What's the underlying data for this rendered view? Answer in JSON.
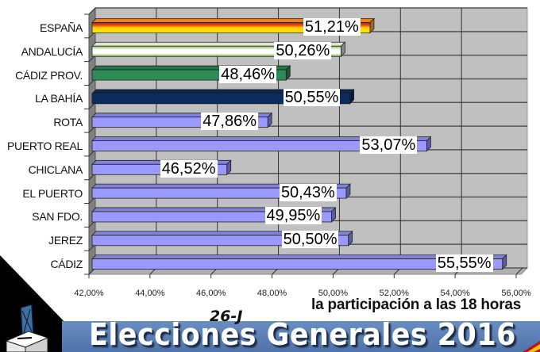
{
  "chart_data": {
    "type": "bar",
    "orientation": "horizontal",
    "style": "3d",
    "title": "",
    "subtitle": "la participación a las 18 horas",
    "xlabel": "",
    "ylabel": "",
    "xlim": [
      42,
      56
    ],
    "x_tick_labels": [
      "42,00%",
      "44,00%",
      "46,00%",
      "48,00%",
      "50,00%",
      "52,00%",
      "54,00%",
      "56,00%"
    ],
    "x_ticks": [
      42,
      44,
      46,
      48,
      50,
      52,
      54,
      56
    ],
    "grid": true,
    "legend": null,
    "categories": [
      "ESPAÑA",
      "ANDALUCÍA",
      "CÁDIZ PROV.",
      "LA BAHÍA",
      "ROTA",
      "PUERTO REAL",
      "CHICLANA",
      "EL PUERTO",
      "SAN FDO.",
      "JEREZ",
      "CÁDIZ"
    ],
    "values": [
      51.21,
      50.26,
      48.46,
      50.55,
      47.86,
      53.07,
      46.52,
      50.43,
      49.95,
      50.5,
      55.55
    ],
    "value_labels": [
      "51,21%",
      "50,26%",
      "48,46%",
      "50,55%",
      "47,86%",
      "53,07%",
      "46,52%",
      "50,43%",
      "49,95%",
      "50,50%",
      "55,55%"
    ],
    "bar_colors": [
      "spain-flag",
      "#e8f5d0",
      "#2e8b57",
      "#0a2d5e",
      "#9999ff",
      "#9999ff",
      "#9999ff",
      "#9999ff",
      "#9999ff",
      "#9999ff",
      "#9999ff"
    ]
  },
  "banner": {
    "tag": "26-J",
    "title": "Elecciones Generales 2016",
    "icon": "ballot-box-icon",
    "accent": "#5b7fb5"
  },
  "colors": {
    "plot_background": "#c0c0c0",
    "wall": "#808080",
    "default_bar": "#9999ff",
    "gridline": "#333333"
  }
}
